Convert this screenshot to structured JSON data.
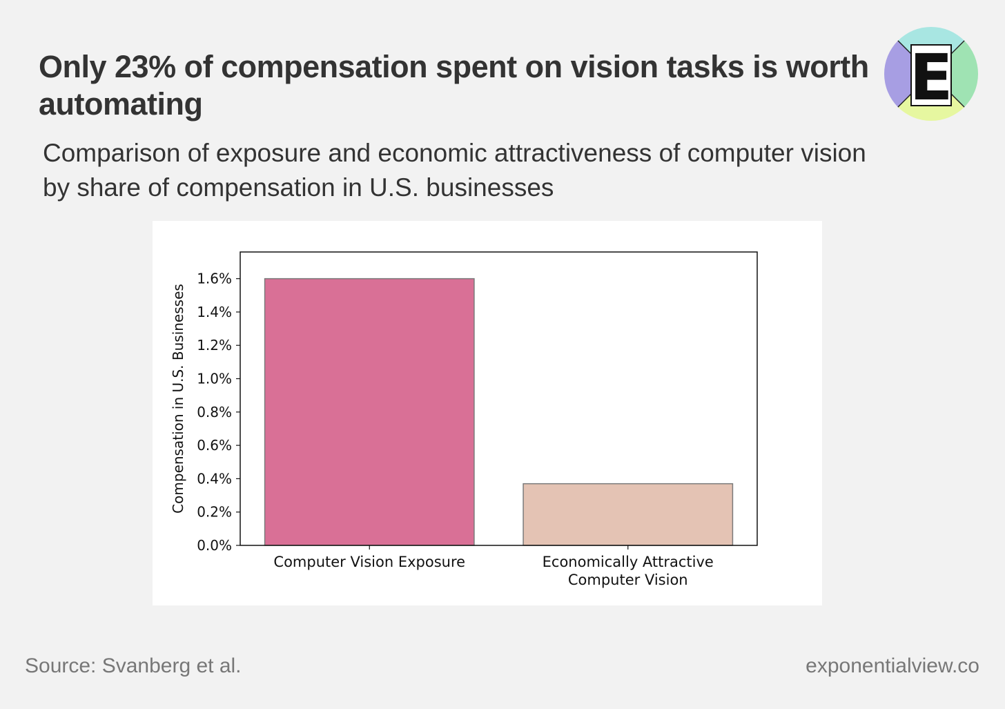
{
  "header": {
    "title": "Only 23% of compensation spent on vision tasks is worth automating",
    "subtitle": "Comparison of exposure and economic attractiveness of computer vision by share of compensation in U.S. businesses"
  },
  "logo": {
    "letter": "E",
    "icon": "exponential-view-logo-icon",
    "colors": [
      "#a8e6e2",
      "#9fe3b3",
      "#e6f7a0",
      "#a79ee3"
    ]
  },
  "footer": {
    "source": "Source: Svanberg et al.",
    "site": "exponentialview.co"
  },
  "chart_data": {
    "type": "bar",
    "categories": [
      "Computer Vision Exposure",
      "Economically Attractive Computer Vision"
    ],
    "category_lines": [
      [
        "Computer Vision Exposure"
      ],
      [
        "Economically Attractive",
        "Computer Vision"
      ]
    ],
    "values": [
      1.6,
      0.37
    ],
    "unit": "%",
    "ylabel": "Compensation in U.S. Businesses",
    "xlabel": "",
    "ylim": [
      0,
      1.76
    ],
    "yticks": [
      0.0,
      0.2,
      0.4,
      0.6,
      0.8,
      1.0,
      1.2,
      1.4,
      1.6
    ],
    "ytick_labels": [
      "0.0%",
      "0.2%",
      "0.4%",
      "0.6%",
      "0.8%",
      "1.0%",
      "1.2%",
      "1.4%",
      "1.6%"
    ],
    "colors": [
      "#d97096",
      "#e4c3b4"
    ],
    "grid": false,
    "legend": false
  }
}
